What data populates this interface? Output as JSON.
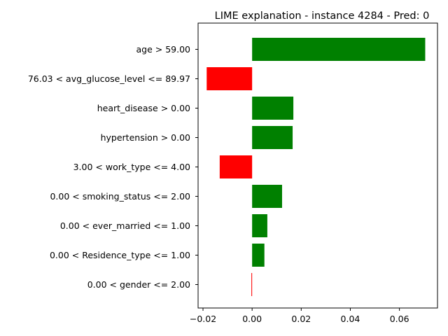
{
  "chart_data": {
    "type": "bar",
    "orientation": "horizontal",
    "title": "LIME explanation - instance 4284 - Pred: 0",
    "xlabel": "",
    "ylabel": "",
    "xlim": [
      -0.022,
      0.0755
    ],
    "x_ticks": [
      -0.02,
      0.0,
      0.02,
      0.04,
      0.06
    ],
    "x_tick_labels": [
      "−0.02",
      "0.00",
      "0.02",
      "0.04",
      "0.06"
    ],
    "grid": false,
    "legend": "none",
    "positive_color": "#008000",
    "negative_color": "#ff0000",
    "categories": [
      "age > 59.00",
      "76.03 < avg_glucose_level <= 89.97",
      "heart_disease > 0.00",
      "hypertension > 0.00",
      "3.00 < work_type <= 4.00",
      "0.00 < smoking_status <= 2.00",
      "0.00 < ever_married <= 1.00",
      "0.00 < Residence_type <= 1.00",
      "0.00 < gender <= 2.00"
    ],
    "values": [
      0.0705,
      -0.0185,
      0.0168,
      0.0165,
      -0.0132,
      0.0122,
      0.0062,
      0.005,
      -0.0003
    ]
  }
}
